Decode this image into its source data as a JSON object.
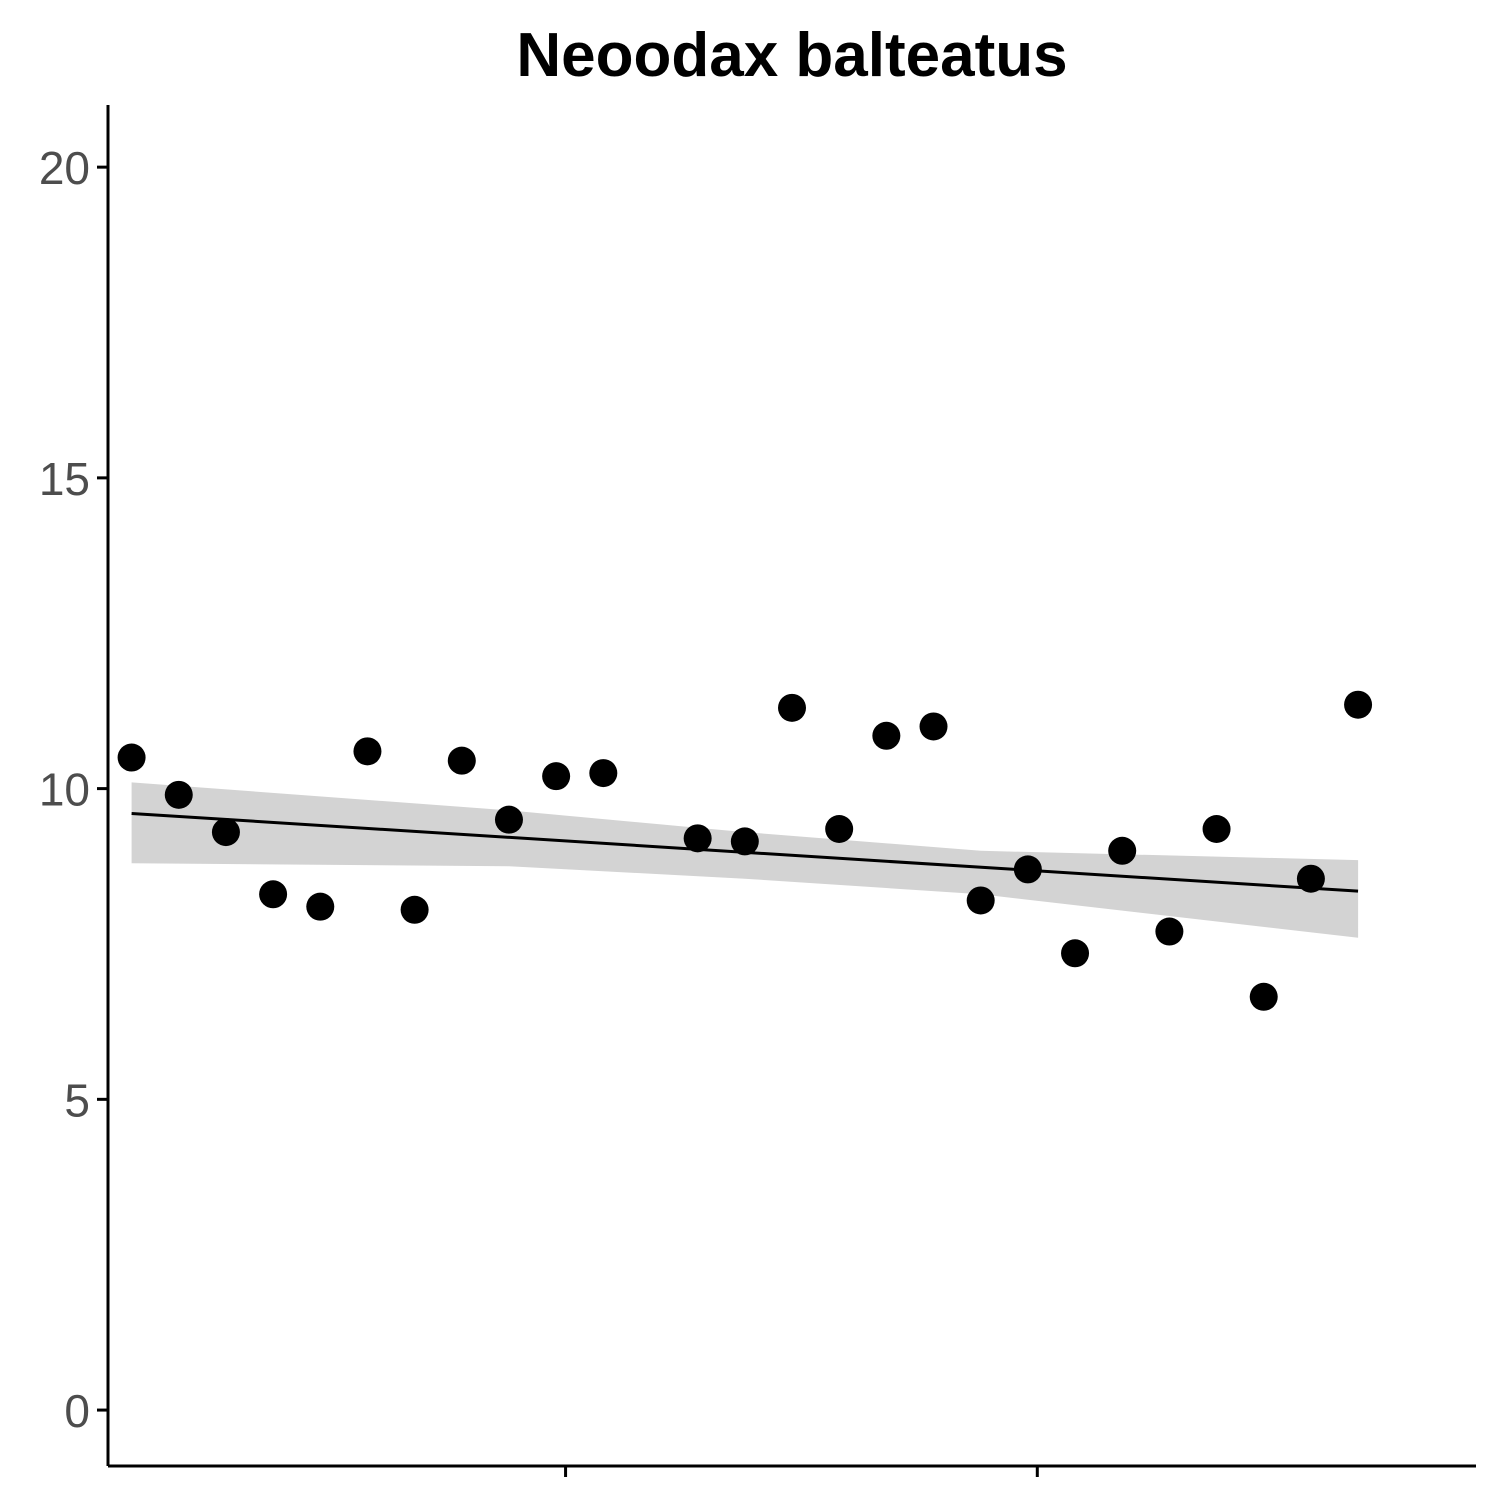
{
  "chart_data": {
    "type": "scatter",
    "title": "Neoodax balteatus",
    "xlabel": "",
    "ylabel": "",
    "xlim": [
      0.5,
      29.5
    ],
    "ylim": [
      -0.9,
      21
    ],
    "x_ticks": [
      {
        "value": 10.2,
        "label": ""
      },
      {
        "value": 20.2,
        "label": ""
      }
    ],
    "y_ticks": [
      {
        "value": 0,
        "label": "0"
      },
      {
        "value": 5,
        "label": "5"
      },
      {
        "value": 10,
        "label": "10"
      },
      {
        "value": 15,
        "label": "15"
      },
      {
        "value": 20,
        "label": "20"
      }
    ],
    "points": [
      {
        "x": 1,
        "y": 10.5
      },
      {
        "x": 2,
        "y": 9.9
      },
      {
        "x": 3,
        "y": 9.3
      },
      {
        "x": 4,
        "y": 8.3
      },
      {
        "x": 5,
        "y": 8.1
      },
      {
        "x": 6,
        "y": 10.6
      },
      {
        "x": 7,
        "y": 8.05
      },
      {
        "x": 8,
        "y": 10.45
      },
      {
        "x": 9,
        "y": 9.5
      },
      {
        "x": 10,
        "y": 10.2
      },
      {
        "x": 11,
        "y": 10.25
      },
      {
        "x": 13,
        "y": 9.2
      },
      {
        "x": 14,
        "y": 9.15
      },
      {
        "x": 15,
        "y": 11.3
      },
      {
        "x": 16,
        "y": 9.35
      },
      {
        "x": 17,
        "y": 10.85
      },
      {
        "x": 18,
        "y": 11.0
      },
      {
        "x": 19,
        "y": 8.2
      },
      {
        "x": 20,
        "y": 8.7
      },
      {
        "x": 21,
        "y": 7.35
      },
      {
        "x": 22,
        "y": 9.0
      },
      {
        "x": 23,
        "y": 7.7
      },
      {
        "x": 24,
        "y": 9.35
      },
      {
        "x": 25,
        "y": 6.65
      },
      {
        "x": 26,
        "y": 8.55
      },
      {
        "x": 27,
        "y": 11.35
      }
    ],
    "trend": {
      "type": "linear",
      "x": [
        1,
        27
      ],
      "y": [
        9.6,
        8.35
      ]
    },
    "confidence_band": {
      "x": [
        1,
        9,
        14,
        19,
        27
      ],
      "upper": [
        10.1,
        9.65,
        9.3,
        9.0,
        8.85
      ],
      "lower": [
        8.8,
        8.75,
        8.55,
        8.3,
        7.6
      ]
    },
    "grid": false,
    "legend": "none",
    "colors": {
      "points": "#000000",
      "trend": "#000000",
      "band": "#d3d3d3",
      "tick_labels": "#4d4d4d"
    }
  }
}
